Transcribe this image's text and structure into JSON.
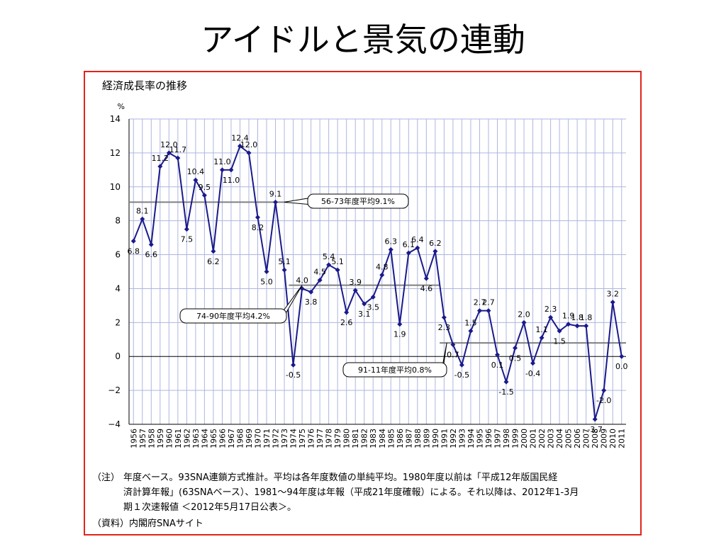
{
  "page": {
    "title": "アイドルと景気の連動"
  },
  "chart_data": {
    "type": "line",
    "title": "経済成長率の推移",
    "ylabel": "%",
    "ylim": [
      -4,
      14
    ],
    "yticks": [
      -4,
      -2,
      0,
      2,
      4,
      6,
      8,
      10,
      12,
      14
    ],
    "grid": true,
    "line_color": "#1a1a8c",
    "average_line_color": "#808080",
    "grid_color": "#aeb6e0",
    "x": [
      1956,
      1957,
      1958,
      1959,
      1960,
      1961,
      1962,
      1963,
      1964,
      1965,
      1966,
      1967,
      1968,
      1969,
      1970,
      1971,
      1972,
      1973,
      1974,
      1975,
      1976,
      1977,
      1978,
      1979,
      1980,
      1981,
      1982,
      1983,
      1984,
      1985,
      1986,
      1987,
      1988,
      1989,
      1990,
      1991,
      1992,
      1993,
      1994,
      1995,
      1996,
      1997,
      1998,
      1999,
      2000,
      2001,
      2002,
      2003,
      2004,
      2005,
      2006,
      2007,
      2008,
      2009,
      2010,
      2011
    ],
    "x_labels": [
      "1956",
      "1957",
      "1958",
      "1959",
      "1960",
      "1961",
      "1962",
      "1963",
      "1964",
      "1965",
      "1966",
      "1967",
      "1968",
      "1969",
      "1970",
      "1971",
      "1972",
      "1973",
      "1974",
      "1975",
      "1976",
      "1977",
      "1978",
      "1979",
      "1980",
      "1981",
      "1982",
      "1983",
      "1984",
      "1985",
      "1986",
      "1987",
      "1988",
      "1989",
      "1990",
      "1991",
      "1992",
      "1993",
      "1994",
      "1995",
      "1996",
      "1997",
      "1998",
      "1999",
      "2000",
      "2001",
      "2002",
      "2003",
      "2004",
      "2005",
      "2006",
      "2007",
      "2008",
      "2009",
      "2010",
      "2011"
    ],
    "values": [
      6.8,
      8.1,
      6.6,
      11.2,
      12.0,
      11.7,
      7.5,
      10.4,
      9.5,
      6.2,
      11.0,
      11.0,
      12.4,
      12.0,
      8.2,
      5.0,
      9.1,
      5.1,
      -0.5,
      4.0,
      3.8,
      4.5,
      5.4,
      5.1,
      2.6,
      3.9,
      3.1,
      3.5,
      4.8,
      6.3,
      1.9,
      6.1,
      6.4,
      4.6,
      6.2,
      2.3,
      0.7,
      -0.5,
      1.5,
      2.7,
      2.7,
      0.1,
      -1.5,
      0.5,
      2.0,
      -0.4,
      1.1,
      2.3,
      1.5,
      1.9,
      1.8,
      1.8,
      -3.7,
      -2.0,
      3.2,
      0.0
    ],
    "data_labels": [
      "6.8",
      "8.1",
      "6.6",
      "11.2",
      "12.0",
      "11.7",
      "7.5",
      "10.4",
      "9.5",
      "6.2",
      "11.0",
      "11.0",
      "12.4",
      "12.0",
      "8.2",
      "5.0",
      "9.1",
      "5.1",
      "-0.5",
      "4.0",
      "3.8",
      "4.5",
      "5.4",
      "5.1",
      "2.6",
      "3.9",
      "3.1",
      "3.5",
      "4.8",
      "6.3",
      "1.9",
      "6.1",
      "6.4",
      "4.6",
      "6.2",
      "2.3",
      "0.7",
      "-0.5",
      "1.5",
      "2.7",
      "2.7",
      "0.1",
      "-1.5",
      "0.5",
      "2.0",
      "-0.4",
      "1.1",
      "2.3",
      "1.5",
      "1.9",
      "1.8",
      "1.8",
      "-3.7",
      "-2.0",
      "3.2",
      "0.0"
    ],
    "label_side": [
      "below",
      "above",
      "below",
      "above",
      "above",
      "above",
      "below",
      "above",
      "above",
      "below",
      "above",
      "below",
      "above",
      "above",
      "below",
      "below",
      "above",
      "above",
      "below",
      "above",
      "below",
      "above",
      "above",
      "above",
      "below",
      "above",
      "below",
      "below",
      "above",
      "above",
      "below",
      "above",
      "above",
      "below",
      "above",
      "below",
      "below",
      "below",
      "above",
      "above",
      "above",
      "below",
      "below",
      "below",
      "above",
      "below",
      "above",
      "above",
      "below",
      "above",
      "above",
      "above",
      "below",
      "below",
      "above",
      "below"
    ],
    "averages": [
      {
        "label": "56-73年度平均9.1%",
        "value": 9.1,
        "from": 1956,
        "to": 1973
      },
      {
        "label": "74-90年度平均4.2%",
        "value": 4.2,
        "from": 1974,
        "to": 1990
      },
      {
        "label": "91-11年度平均0.8%",
        "value": 0.8,
        "from": 1991,
        "to": 2011
      }
    ]
  },
  "notes": {
    "note_label": "（注）",
    "note_line1": "年度ベース。93SNA連鎖方式推計。平均は各年度数値の単純平均。1980年度以前は「平成12年版国民経",
    "note_line2": "済計算年報」(63SNAベース）、1981～94年度は年報（平成21年度確報）による。それ以降は、2012年1-3月",
    "note_line3": "期１次速報値 ＜2012年5月17日公表＞。",
    "source": "（資料）内閣府SNAサイト"
  }
}
